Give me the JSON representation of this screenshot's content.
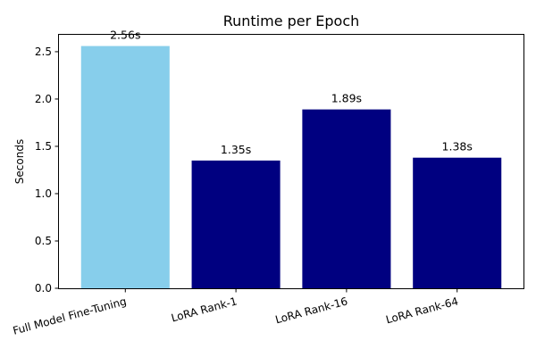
{
  "chart_data": {
    "type": "bar",
    "title": "Runtime per Epoch",
    "xlabel": "",
    "ylabel": "Seconds",
    "categories": [
      "Full Model Fine-Tuning",
      "LoRA Rank-1",
      "LoRA Rank-16",
      "LoRA Rank-64"
    ],
    "values": [
      2.56,
      1.35,
      1.89,
      1.38
    ],
    "data_labels": [
      "2.56s",
      "1.35s",
      "1.89s",
      "1.38s"
    ],
    "bar_colors": [
      "#87ceeb",
      "#000080",
      "#000080",
      "#000080"
    ],
    "ylim": [
      0,
      2.688
    ],
    "yticks": [
      0.0,
      0.5,
      1.0,
      1.5,
      2.0,
      2.5
    ],
    "ytick_labels": [
      "0.0",
      "0.5",
      "1.0",
      "1.5",
      "2.0",
      "2.5"
    ],
    "grid": false,
    "xtick_rotation_deg": 15
  }
}
